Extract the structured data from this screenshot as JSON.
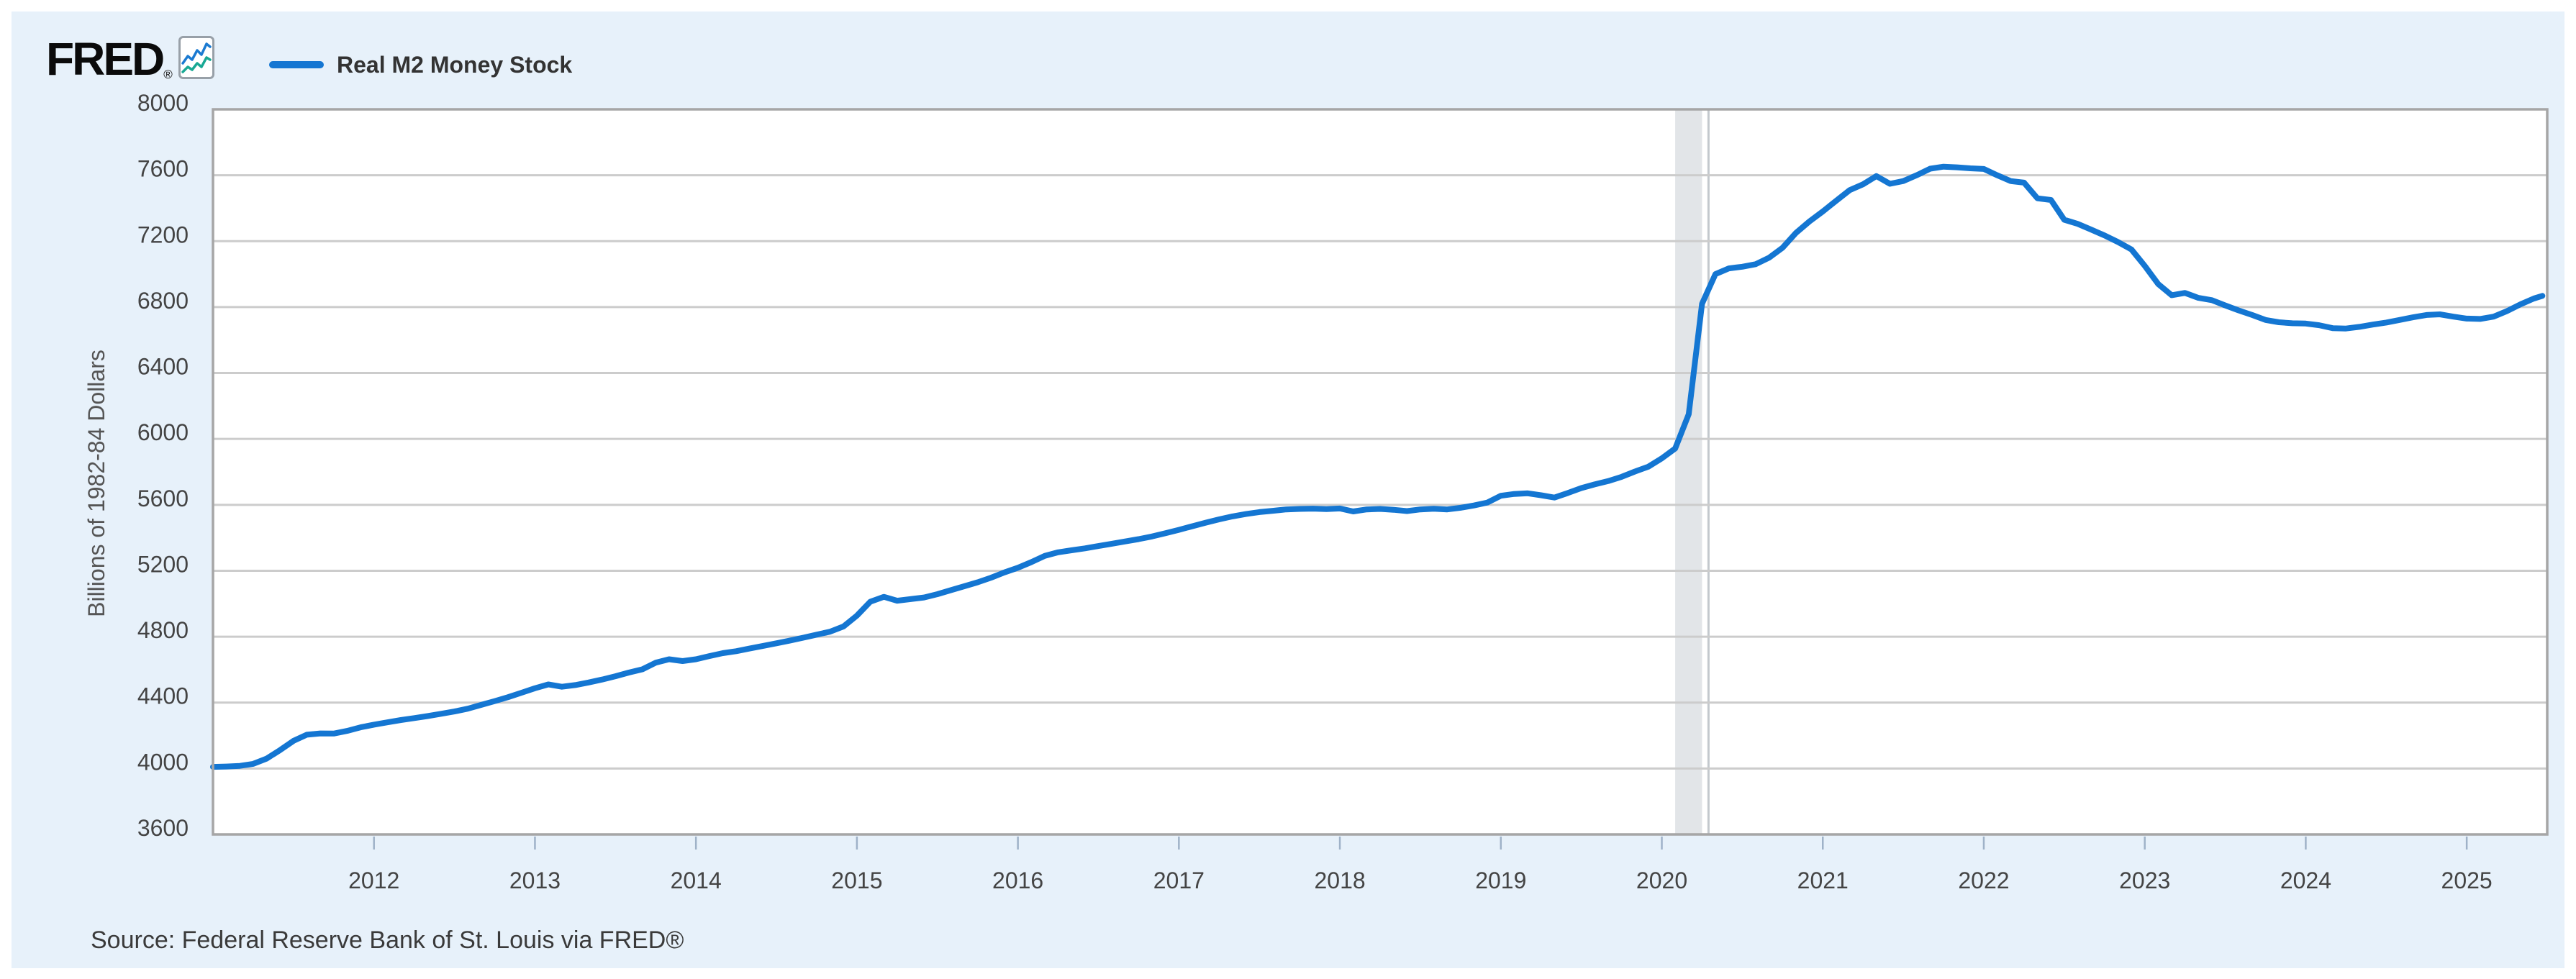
{
  "header": {
    "logo_text": "FRED",
    "logo_reg_mark": "®",
    "logo_icon": "fred-sparkline-icon",
    "legend_label": "Real M2 Money Stock"
  },
  "footer": {
    "source_text": "Source: Federal Reserve Bank of St. Louis via FRED®"
  },
  "colors": {
    "panel_bg": "#e7f1fa",
    "plot_bg": "#ffffff",
    "line": "#1476d2",
    "grid": "#cccccc",
    "border": "#a6a6a6",
    "tick_text": "#444444",
    "tick_mark": "#9fb2c8",
    "axis_title_text": "#555555",
    "legend_text": "#333333",
    "source_text": "#3a3a3a",
    "recession_band": "#e2e5e8",
    "recession_edge": "#c3c8cd",
    "logo_color": "#0b0b0b",
    "logo_icon_blue": "#1b7ad1",
    "logo_icon_teal": "#18a894"
  },
  "chart_data": {
    "type": "line",
    "title": "Real M2 Money Stock",
    "xlabel": "",
    "ylabel": "Billions of 1982-84 Dollars",
    "xlim": [
      2011.0,
      2025.5
    ],
    "ylim": [
      3600,
      8000
    ],
    "y_ticks": [
      8000,
      7600,
      7200,
      6800,
      6400,
      6000,
      5600,
      5200,
      4800,
      4400,
      4000,
      3600
    ],
    "x_ticks": [
      2012,
      2013,
      2014,
      2015,
      2016,
      2017,
      2018,
      2019,
      2020,
      2021,
      2022,
      2023,
      2024,
      2025
    ],
    "grid": "horizontal",
    "legend_position": "top-left",
    "recession_band": {
      "start": 2020.083,
      "end": 2020.25,
      "edge_line_x": 2020.29
    },
    "series": [
      {
        "name": "Real M2 Money Stock",
        "points": [
          [
            2011.0,
            4010
          ],
          [
            2011.083,
            4012
          ],
          [
            2011.167,
            4016
          ],
          [
            2011.25,
            4028
          ],
          [
            2011.333,
            4060
          ],
          [
            2011.417,
            4112
          ],
          [
            2011.5,
            4168
          ],
          [
            2011.583,
            4205
          ],
          [
            2011.667,
            4213
          ],
          [
            2011.75,
            4212
          ],
          [
            2011.833,
            4228
          ],
          [
            2011.917,
            4250
          ],
          [
            2012.0,
            4266
          ],
          [
            2012.083,
            4280
          ],
          [
            2012.167,
            4294
          ],
          [
            2012.25,
            4306
          ],
          [
            2012.333,
            4318
          ],
          [
            2012.417,
            4332
          ],
          [
            2012.5,
            4346
          ],
          [
            2012.583,
            4363
          ],
          [
            2012.667,
            4386
          ],
          [
            2012.75,
            4409
          ],
          [
            2012.833,
            4433
          ],
          [
            2012.917,
            4460
          ],
          [
            2013.0,
            4487
          ],
          [
            2013.083,
            4510
          ],
          [
            2013.167,
            4496
          ],
          [
            2013.25,
            4506
          ],
          [
            2013.333,
            4522
          ],
          [
            2013.417,
            4540
          ],
          [
            2013.5,
            4560
          ],
          [
            2013.583,
            4582
          ],
          [
            2013.667,
            4602
          ],
          [
            2013.75,
            4642
          ],
          [
            2013.833,
            4663
          ],
          [
            2013.917,
            4652
          ],
          [
            2014.0,
            4663
          ],
          [
            2014.083,
            4682
          ],
          [
            2014.167,
            4700
          ],
          [
            2014.25,
            4712
          ],
          [
            2014.333,
            4728
          ],
          [
            2014.417,
            4744
          ],
          [
            2014.5,
            4760
          ],
          [
            2014.583,
            4776
          ],
          [
            2014.667,
            4794
          ],
          [
            2014.75,
            4812
          ],
          [
            2014.833,
            4830
          ],
          [
            2014.917,
            4862
          ],
          [
            2015.0,
            4928
          ],
          [
            2015.083,
            5012
          ],
          [
            2015.167,
            5042
          ],
          [
            2015.25,
            5018
          ],
          [
            2015.333,
            5028
          ],
          [
            2015.417,
            5038
          ],
          [
            2015.5,
            5058
          ],
          [
            2015.583,
            5082
          ],
          [
            2015.667,
            5106
          ],
          [
            2015.75,
            5130
          ],
          [
            2015.833,
            5158
          ],
          [
            2015.917,
            5190
          ],
          [
            2016.0,
            5218
          ],
          [
            2016.083,
            5252
          ],
          [
            2016.167,
            5290
          ],
          [
            2016.25,
            5312
          ],
          [
            2016.333,
            5324
          ],
          [
            2016.417,
            5336
          ],
          [
            2016.5,
            5350
          ],
          [
            2016.583,
            5364
          ],
          [
            2016.667,
            5378
          ],
          [
            2016.75,
            5392
          ],
          [
            2016.833,
            5408
          ],
          [
            2016.917,
            5428
          ],
          [
            2017.0,
            5448
          ],
          [
            2017.083,
            5470
          ],
          [
            2017.167,
            5492
          ],
          [
            2017.25,
            5512
          ],
          [
            2017.333,
            5530
          ],
          [
            2017.417,
            5544
          ],
          [
            2017.5,
            5556
          ],
          [
            2017.583,
            5564
          ],
          [
            2017.667,
            5572
          ],
          [
            2017.75,
            5575
          ],
          [
            2017.833,
            5577
          ],
          [
            2017.917,
            5574
          ],
          [
            2018.0,
            5578
          ],
          [
            2018.083,
            5560
          ],
          [
            2018.167,
            5572
          ],
          [
            2018.25,
            5575
          ],
          [
            2018.333,
            5570
          ],
          [
            2018.417,
            5562
          ],
          [
            2018.5,
            5572
          ],
          [
            2018.583,
            5576
          ],
          [
            2018.667,
            5572
          ],
          [
            2018.75,
            5582
          ],
          [
            2018.833,
            5596
          ],
          [
            2018.917,
            5614
          ],
          [
            2019.0,
            5655
          ],
          [
            2019.083,
            5666
          ],
          [
            2019.167,
            5670
          ],
          [
            2019.25,
            5658
          ],
          [
            2019.333,
            5644
          ],
          [
            2019.417,
            5672
          ],
          [
            2019.5,
            5702
          ],
          [
            2019.583,
            5724
          ],
          [
            2019.667,
            5744
          ],
          [
            2019.75,
            5770
          ],
          [
            2019.833,
            5802
          ],
          [
            2019.917,
            5832
          ],
          [
            2020.0,
            5882
          ],
          [
            2020.083,
            5942
          ],
          [
            2020.167,
            6150
          ],
          [
            2020.25,
            6820
          ],
          [
            2020.333,
            7000
          ],
          [
            2020.417,
            7035
          ],
          [
            2020.5,
            7045
          ],
          [
            2020.583,
            7060
          ],
          [
            2020.667,
            7100
          ],
          [
            2020.75,
            7160
          ],
          [
            2020.833,
            7250
          ],
          [
            2020.917,
            7320
          ],
          [
            2021.0,
            7380
          ],
          [
            2021.083,
            7445
          ],
          [
            2021.167,
            7510
          ],
          [
            2021.25,
            7545
          ],
          [
            2021.333,
            7595
          ],
          [
            2021.417,
            7548
          ],
          [
            2021.5,
            7565
          ],
          [
            2021.583,
            7600
          ],
          [
            2021.667,
            7640
          ],
          [
            2021.75,
            7652
          ],
          [
            2021.833,
            7648
          ],
          [
            2021.917,
            7642
          ],
          [
            2022.0,
            7638
          ],
          [
            2022.083,
            7600
          ],
          [
            2022.167,
            7565
          ],
          [
            2022.25,
            7555
          ],
          [
            2022.333,
            7460
          ],
          [
            2022.417,
            7450
          ],
          [
            2022.5,
            7330
          ],
          [
            2022.583,
            7305
          ],
          [
            2022.667,
            7270
          ],
          [
            2022.75,
            7235
          ],
          [
            2022.833,
            7195
          ],
          [
            2022.917,
            7150
          ],
          [
            2023.0,
            7050
          ],
          [
            2023.083,
            6940
          ],
          [
            2023.167,
            6872
          ],
          [
            2023.25,
            6886
          ],
          [
            2023.333,
            6856
          ],
          [
            2023.417,
            6842
          ],
          [
            2023.5,
            6810
          ],
          [
            2023.583,
            6780
          ],
          [
            2023.667,
            6752
          ],
          [
            2023.75,
            6722
          ],
          [
            2023.833,
            6708
          ],
          [
            2023.917,
            6702
          ],
          [
            2024.0,
            6700
          ],
          [
            2024.083,
            6690
          ],
          [
            2024.167,
            6672
          ],
          [
            2024.25,
            6670
          ],
          [
            2024.333,
            6680
          ],
          [
            2024.417,
            6694
          ],
          [
            2024.5,
            6706
          ],
          [
            2024.583,
            6722
          ],
          [
            2024.667,
            6738
          ],
          [
            2024.75,
            6752
          ],
          [
            2024.833,
            6756
          ],
          [
            2024.917,
            6742
          ],
          [
            2025.0,
            6730
          ],
          [
            2025.083,
            6728
          ],
          [
            2025.167,
            6742
          ],
          [
            2025.25,
            6776
          ],
          [
            2025.333,
            6816
          ],
          [
            2025.417,
            6852
          ],
          [
            2025.47,
            6868
          ]
        ]
      }
    ]
  }
}
